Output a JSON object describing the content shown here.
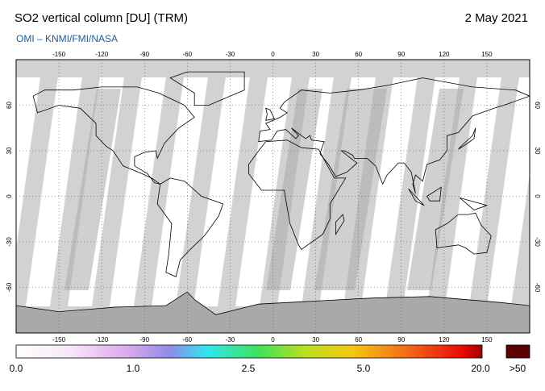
{
  "header": {
    "title": "SO2 vertical column [DU] (TRM)",
    "date": "2 May 2021",
    "subtitle": "OMI  –  KNMI/FMI/NASA"
  },
  "map": {
    "lon_ticks": [
      -150,
      -120,
      -90,
      -60,
      -30,
      0,
      30,
      60,
      90,
      120,
      150
    ],
    "lat_ticks": [
      60,
      30,
      0,
      -30,
      -60
    ]
  },
  "colorbar": {
    "labels": [
      "0.0",
      "1.0",
      "2.5",
      "5.0",
      "20.0"
    ],
    "overflow": ">50"
  }
}
